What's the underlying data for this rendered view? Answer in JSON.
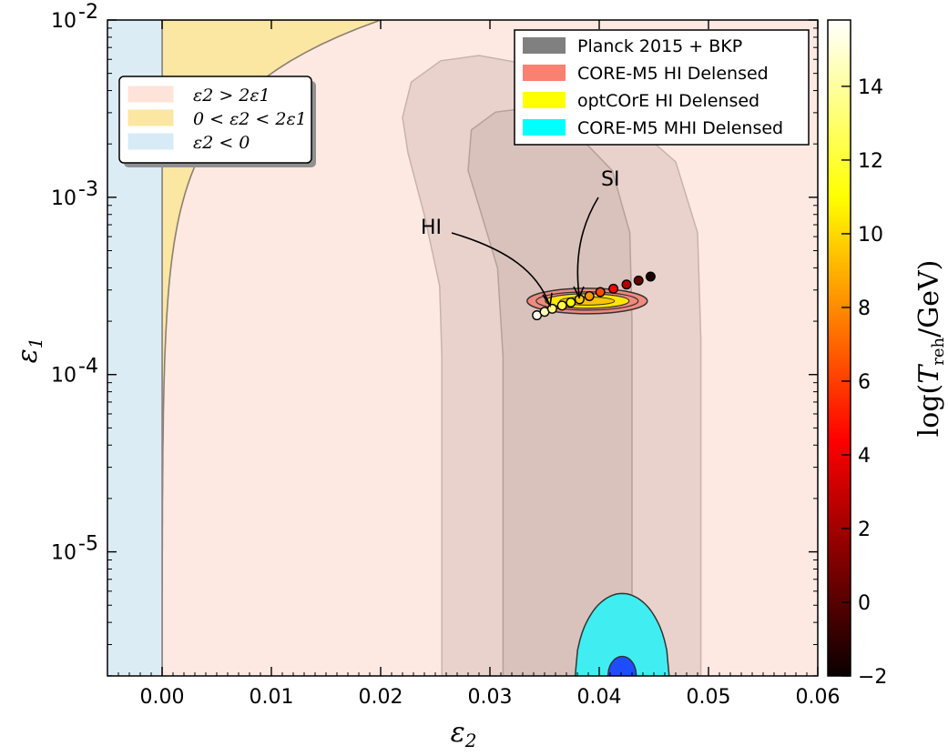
{
  "chart_data": {
    "type": "scatter",
    "xlabel": "ε2",
    "ylabel": "ε1",
    "xlim": [
      -0.005,
      0.06
    ],
    "ylim_log10": [
      -5.7,
      -2
    ],
    "y_scale": "log",
    "x_ticks": [
      {
        "value": 0.0,
        "label": "0.00"
      },
      {
        "value": 0.01,
        "label": "0.01"
      },
      {
        "value": 0.02,
        "label": "0.02"
      },
      {
        "value": 0.03,
        "label": "0.03"
      },
      {
        "value": 0.04,
        "label": "0.04"
      },
      {
        "value": 0.05,
        "label": "0.05"
      },
      {
        "value": 0.06,
        "label": "0.06"
      }
    ],
    "y_ticks": [
      {
        "log": -2,
        "base": "10",
        "exp": "-2"
      },
      {
        "log": -3,
        "base": "10",
        "exp": "-3"
      },
      {
        "log": -4,
        "base": "10",
        "exp": "-4"
      },
      {
        "log": -5,
        "base": "10",
        "exp": "-5"
      }
    ],
    "regions_legend": [
      {
        "label": "ε2 > 2ε1",
        "color": "#fde3da"
      },
      {
        "label": "0 < ε2 < 2ε1",
        "color": "#fbe6a2"
      },
      {
        "label": "ε2 < 0",
        "color": "#d6ebf6"
      }
    ],
    "datasets_legend": [
      {
        "label": "Planck 2015 + BKP",
        "color": "#808080"
      },
      {
        "label": "CORE-M5 HI Delensed",
        "color": "#fa8072"
      },
      {
        "label": "optCOrE HI Delensed",
        "color": "#ffff00"
      },
      {
        "label": "CORE-M5 MHI Delensed",
        "color": "#00ffff"
      }
    ],
    "points": [
      {
        "eps2": 0.0343,
        "eps1": 0.000216,
        "T": 15.5
      },
      {
        "eps2": 0.035,
        "eps1": 0.000226,
        "T": 14.5
      },
      {
        "eps2": 0.0357,
        "eps1": 0.000235,
        "T": 13.5
      },
      {
        "eps2": 0.0366,
        "eps1": 0.000245,
        "T": 12.5
      },
      {
        "eps2": 0.0374,
        "eps1": 0.000255,
        "T": 11.2
      },
      {
        "eps2": 0.0382,
        "eps1": 0.000266,
        "T": 10.0
      },
      {
        "eps2": 0.0391,
        "eps1": 0.000277,
        "T": 8.5
      },
      {
        "eps2": 0.0401,
        "eps1": 0.000292,
        "T": 6.5
      },
      {
        "eps2": 0.0413,
        "eps1": 0.000305,
        "T": 4.5
      },
      {
        "eps2": 0.0425,
        "eps1": 0.000322,
        "T": 2.5
      },
      {
        "eps2": 0.0436,
        "eps1": 0.000339,
        "T": 0.5
      },
      {
        "eps2": 0.0447,
        "eps1": 0.000357,
        "T": -1.5
      }
    ],
    "annotations": [
      {
        "text": "HI",
        "target": "HI-point"
      },
      {
        "text": "SI",
        "target": "SI-point"
      }
    ],
    "colorbar": {
      "label": "log(T_reh/GeV)",
      "label_main": "log(",
      "label_T": "T",
      "label_sub": "reh",
      "label_tail": "/GeV)",
      "range": [
        -2,
        15.8
      ],
      "ticks": [
        {
          "value": -2,
          "label": "−2"
        },
        {
          "value": 0,
          "label": "0"
        },
        {
          "value": 2,
          "label": "2"
        },
        {
          "value": 4,
          "label": "4"
        },
        {
          "value": 6,
          "label": "6"
        },
        {
          "value": 8,
          "label": "8"
        },
        {
          "value": 10,
          "label": "10"
        },
        {
          "value": 12,
          "label": "12"
        },
        {
          "value": 14,
          "label": "14"
        }
      ]
    }
  }
}
